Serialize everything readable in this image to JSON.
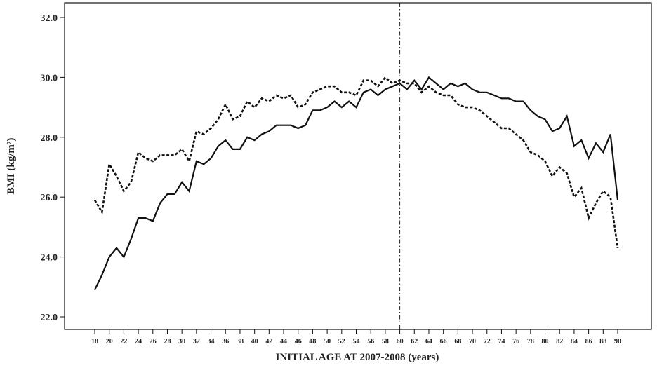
{
  "chart_data": {
    "type": "line",
    "xlabel": "INITIAL AGE AT 2007-2008 (years)",
    "ylabel": "BMI (kg/m²)",
    "xlim": [
      18,
      90
    ],
    "ylim": [
      22,
      32
    ],
    "y_ticks": [
      {
        "value": 22,
        "label": "22.0"
      },
      {
        "value": 24,
        "label": "24.0"
      },
      {
        "value": 26,
        "label": "26.0"
      },
      {
        "value": 28,
        "label": "28.0"
      },
      {
        "value": 30,
        "label": "30.0"
      },
      {
        "value": 32,
        "label": "32.0"
      }
    ],
    "x_ticks": [
      18,
      20,
      22,
      24,
      26,
      28,
      30,
      32,
      34,
      36,
      38,
      40,
      42,
      44,
      46,
      48,
      50,
      52,
      54,
      56,
      58,
      60,
      62,
      64,
      66,
      68,
      70,
      72,
      74,
      76,
      78,
      80,
      82,
      84,
      86,
      88,
      90
    ],
    "reference_line": {
      "x": 60,
      "style": "dash-dot"
    },
    "grid": false,
    "legend": "none",
    "x": [
      18,
      19,
      20,
      21,
      22,
      23,
      24,
      25,
      26,
      27,
      28,
      29,
      30,
      31,
      32,
      33,
      34,
      35,
      36,
      37,
      38,
      39,
      40,
      41,
      42,
      43,
      44,
      45,
      46,
      47,
      48,
      49,
      50,
      51,
      52,
      53,
      54,
      55,
      56,
      57,
      58,
      59,
      60,
      61,
      62,
      63,
      64,
      65,
      66,
      67,
      68,
      69,
      70,
      71,
      72,
      73,
      74,
      75,
      76,
      77,
      78,
      79,
      80,
      81,
      82,
      83,
      84,
      85,
      86,
      87,
      88,
      89,
      90
    ],
    "series": [
      {
        "style": "solid",
        "color": "#111111",
        "values": [
          22.9,
          23.4,
          24.0,
          24.3,
          24.0,
          24.6,
          25.3,
          25.3,
          25.2,
          25.8,
          26.1,
          26.1,
          26.5,
          26.2,
          27.2,
          27.1,
          27.3,
          27.7,
          27.9,
          27.6,
          27.6,
          28.0,
          27.9,
          28.1,
          28.2,
          28.4,
          28.4,
          28.4,
          28.3,
          28.4,
          28.9,
          28.9,
          29.0,
          29.2,
          29.0,
          29.2,
          29.0,
          29.5,
          29.6,
          29.4,
          29.6,
          29.7,
          29.8,
          29.6,
          29.9,
          29.6,
          30.0,
          29.8,
          29.6,
          29.8,
          29.7,
          29.8,
          29.6,
          29.5,
          29.5,
          29.4,
          29.3,
          29.3,
          29.2,
          29.2,
          28.9,
          28.7,
          28.6,
          28.2,
          28.3,
          28.7,
          27.7,
          27.9,
          27.3,
          27.8,
          27.5,
          28.1,
          25.9
        ]
      },
      {
        "style": "dashed",
        "color": "#111111",
        "values": [
          25.9,
          25.5,
          27.1,
          26.7,
          26.2,
          26.5,
          27.5,
          27.3,
          27.2,
          27.4,
          27.4,
          27.4,
          27.6,
          27.2,
          28.2,
          28.1,
          28.3,
          28.6,
          29.1,
          28.6,
          28.7,
          29.2,
          29.0,
          29.3,
          29.2,
          29.4,
          29.3,
          29.4,
          29.0,
          29.1,
          29.5,
          29.6,
          29.7,
          29.7,
          29.5,
          29.5,
          29.4,
          29.9,
          29.9,
          29.7,
          30.0,
          29.8,
          29.9,
          29.8,
          29.8,
          29.5,
          29.7,
          29.5,
          29.4,
          29.4,
          29.1,
          29.0,
          29.0,
          28.9,
          28.7,
          28.5,
          28.3,
          28.3,
          28.1,
          27.9,
          27.5,
          27.4,
          27.2,
          26.7,
          27.0,
          26.8,
          26.0,
          26.3,
          25.3,
          25.8,
          26.2,
          26.0,
          24.3
        ]
      }
    ]
  }
}
